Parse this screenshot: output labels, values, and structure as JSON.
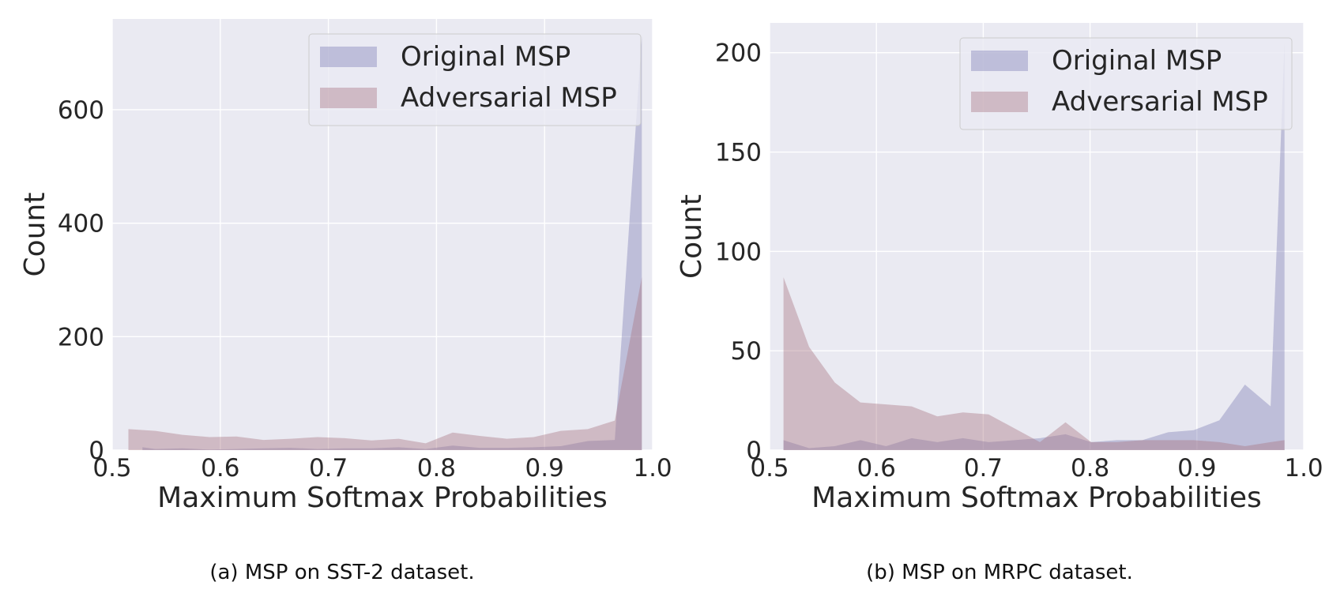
{
  "colors": {
    "panel_background": "#EAEAF2",
    "grid": "#FFFFFF",
    "original": "#7C7DB5",
    "adversarial": "#A8737F",
    "text": "#262626"
  },
  "chart_data": [
    {
      "type": "area",
      "caption": "(a) MSP on SST-2 dataset.",
      "xlabel": "Maximum Softmax Probabilities",
      "ylabel": "Count",
      "xlim": [
        0.5,
        1.0
      ],
      "ylim": [
        0,
        760
      ],
      "xticks": [
        0.5,
        0.6,
        0.7,
        0.8,
        0.9,
        1.0
      ],
      "xtick_labels": [
        "0.5",
        "0.6",
        "0.7",
        "0.8",
        "0.9",
        "1.0"
      ],
      "yticks": [
        0,
        200,
        400,
        600
      ],
      "ytick_labels": [
        "0",
        "200",
        "400",
        "600"
      ],
      "grid": true,
      "legend": "top-right",
      "series": [
        {
          "name": "Original MSP",
          "x": [
            0.528,
            0.54,
            0.565,
            0.59,
            0.615,
            0.64,
            0.665,
            0.69,
            0.715,
            0.74,
            0.765,
            0.79,
            0.815,
            0.84,
            0.865,
            0.89,
            0.915,
            0.94,
            0.965,
            0.99
          ],
          "y": [
            5,
            2,
            3,
            1,
            2,
            3,
            4,
            2,
            3,
            3,
            5,
            2,
            8,
            4,
            4,
            5,
            7,
            16,
            18,
            730
          ]
        },
        {
          "name": "Adversarial MSP",
          "x": [
            0.515,
            0.54,
            0.565,
            0.59,
            0.615,
            0.64,
            0.665,
            0.69,
            0.715,
            0.74,
            0.765,
            0.79,
            0.815,
            0.84,
            0.865,
            0.89,
            0.915,
            0.94,
            0.965,
            0.99
          ],
          "y": [
            37,
            34,
            27,
            23,
            24,
            18,
            20,
            23,
            21,
            17,
            20,
            12,
            31,
            25,
            20,
            23,
            34,
            37,
            52,
            305
          ]
        }
      ]
    },
    {
      "type": "area",
      "caption": "(b) MSP on MRPC dataset.",
      "xlabel": "Maximum Softmax Probabilities",
      "ylabel": "Count",
      "xlim": [
        0.5,
        1.0
      ],
      "ylim": [
        0,
        215
      ],
      "xticks": [
        0.5,
        0.6,
        0.7,
        0.8,
        0.9,
        1.0
      ],
      "xtick_labels": [
        "0.5",
        "0.6",
        "0.7",
        "0.8",
        "0.9",
        "1.0"
      ],
      "yticks": [
        0,
        50,
        100,
        150,
        200
      ],
      "ytick_labels": [
        "0",
        "50",
        "100",
        "150",
        "200"
      ],
      "grid": true,
      "legend": "top-right",
      "series": [
        {
          "name": "Original MSP",
          "x": [
            0.513,
            0.537,
            0.561,
            0.585,
            0.609,
            0.633,
            0.657,
            0.681,
            0.705,
            0.729,
            0.753,
            0.777,
            0.801,
            0.825,
            0.849,
            0.873,
            0.897,
            0.921,
            0.945,
            0.969,
            0.982
          ],
          "y": [
            5,
            1,
            2,
            5,
            2,
            6,
            4,
            6,
            4,
            5,
            6,
            8,
            4,
            5,
            5,
            9,
            10,
            15,
            33,
            22,
            205
          ]
        },
        {
          "name": "Adversarial MSP",
          "x": [
            0.513,
            0.537,
            0.561,
            0.585,
            0.609,
            0.633,
            0.657,
            0.681,
            0.705,
            0.729,
            0.753,
            0.777,
            0.801,
            0.825,
            0.849,
            0.873,
            0.897,
            0.921,
            0.945,
            0.969,
            0.982
          ],
          "y": [
            87,
            52,
            34,
            24,
            23,
            22,
            17,
            19,
            18,
            11,
            4,
            14,
            4,
            4,
            5,
            5,
            5,
            4,
            2,
            4,
            5
          ]
        }
      ]
    }
  ]
}
